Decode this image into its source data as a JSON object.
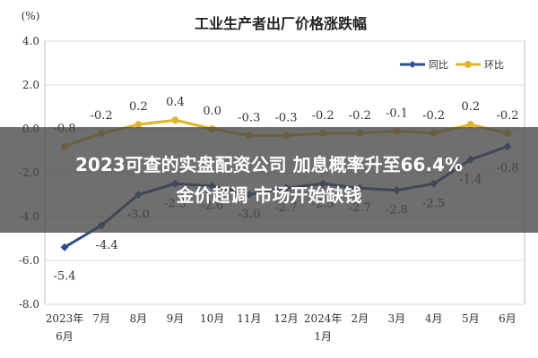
{
  "chart_data": {
    "type": "line",
    "title": "工业生产者出厂价格涨跌幅",
    "unit_label": "(%)",
    "x": [
      "2023年\n6月",
      "7月",
      "8月",
      "9月",
      "10月",
      "11月",
      "12月",
      "2024年\n1月",
      "2月",
      "3月",
      "4月",
      "5月",
      "6月"
    ],
    "series": [
      {
        "name": "同比",
        "color": "#2f4f8f",
        "values": [
          -5.4,
          -4.4,
          -3.0,
          -2.5,
          -2.6,
          -3.0,
          -2.7,
          -2.5,
          -2.7,
          -2.8,
          -2.5,
          -1.4,
          -0.8
        ]
      },
      {
        "name": "环比",
        "color": "#e0b52a",
        "values": [
          -0.8,
          -0.2,
          0.2,
          0.4,
          0.0,
          -0.3,
          -0.3,
          -0.2,
          -0.2,
          -0.1,
          -0.2,
          0.2,
          -0.2
        ]
      }
    ],
    "ylim": [
      -8.0,
      4.0
    ],
    "yticks": [
      "4.0",
      "2.0",
      "0.0",
      "-2.0",
      "-4.0",
      "-6.0",
      "-8.0"
    ],
    "ytick_values": [
      4,
      2,
      0,
      -2,
      -4,
      -6,
      -8
    ],
    "grid": true,
    "legend": "top-right"
  },
  "overlay": {
    "line1": "2023可查的实盘配资公司 加息概率升至66.4%",
    "line2": "金价超调 市场开始缺钱"
  }
}
